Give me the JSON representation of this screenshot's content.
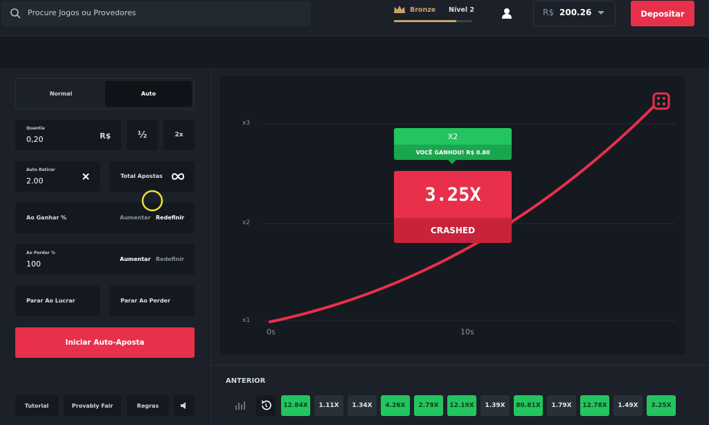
{
  "header": {
    "search_placeholder": "Procure Jogos ou Provedores",
    "rank": "Bronze",
    "level": "Nível 2",
    "currency": "R$",
    "balance": "200.26",
    "deposit": "Depositar"
  },
  "bet_panel": {
    "tabs": [
      "Normal",
      "Auto"
    ],
    "amount_label": "Quantia",
    "amount": "0,20",
    "amount_currency": "R$",
    "half": "½",
    "double": "2x",
    "auto_cashout_label": "Auto Retirar",
    "auto_cashout": "2.00",
    "total_bets_label": "Total Apostas",
    "on_win_label": "Ao Ganhar %",
    "on_win_increase": "Aumentar",
    "on_win_reset": "Redefinir",
    "on_loss_label": "Ao Perder %",
    "on_loss": "100",
    "on_loss_increase": "Aumentar",
    "on_loss_reset": "Redefinir",
    "stop_profit": "Parar Ao Lucrar",
    "stop_loss": "Parar Ao Perder",
    "start": "Iniciar Auto-Aposta"
  },
  "footer_links": [
    "Tutorial",
    "Provably Fair",
    "Regras"
  ],
  "game": {
    "y_labels": [
      "x3",
      "x2",
      "x1"
    ],
    "x_labels": [
      "0s",
      "10s"
    ],
    "win_multiplier": "X2",
    "win_message": "VOCÊ GANHOU! R$ 0.80",
    "crash_value": "3.25X",
    "crash_status": "CRASHED"
  },
  "history": {
    "title": "ANTERIOR",
    "rounds": [
      {
        "label": "12.84X",
        "win": true
      },
      {
        "label": "1.11X",
        "win": false
      },
      {
        "label": "1.34X",
        "win": false
      },
      {
        "label": "4.26X",
        "win": true
      },
      {
        "label": "2.79X",
        "win": true
      },
      {
        "label": "12.19X",
        "win": true
      },
      {
        "label": "1.39X",
        "win": false
      },
      {
        "label": "80.81X",
        "win": true
      },
      {
        "label": "1.79X",
        "win": false
      },
      {
        "label": "12.78X",
        "win": true
      },
      {
        "label": "1.49X",
        "win": false
      },
      {
        "label": "3.25X",
        "win": true
      }
    ]
  }
}
